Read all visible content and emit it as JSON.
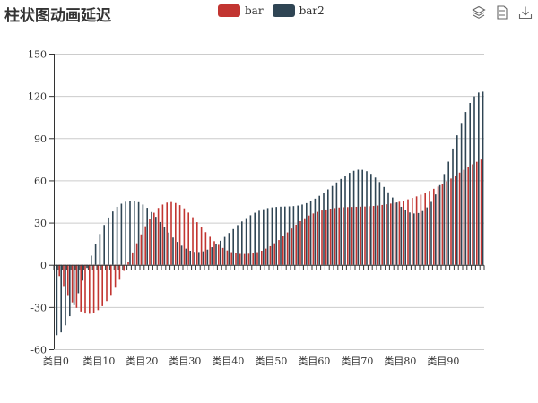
{
  "chart_data": {
    "type": "bar",
    "title": "柱状图动画延迟",
    "legend_position": "top-center",
    "grid": true,
    "ylim": [
      -60,
      150
    ],
    "yticks": [
      -60,
      -30,
      0,
      30,
      60,
      90,
      120,
      150
    ],
    "x_tick_labels": [
      "类目0",
      "类目10",
      "类目20",
      "类目30",
      "类目40",
      "类目50",
      "类目60",
      "类目70",
      "类目80",
      "类目90"
    ],
    "category_prefix": "类目",
    "category_count": 100,
    "series": [
      {
        "name": "bar",
        "color": "#c23531",
        "values": [
          0,
          -8.0,
          -15.1,
          -21.5,
          -26.7,
          -30.6,
          -33.2,
          -34.6,
          -34.8,
          -34.0,
          -32.2,
          -29.4,
          -25.8,
          -21.4,
          -16.3,
          -10.6,
          -4.3,
          2.2,
          8.8,
          15.3,
          21.6,
          27.4,
          32.6,
          37.0,
          40.4,
          42.8,
          44.2,
          44.6,
          43.9,
          42.4,
          40.1,
          37.1,
          33.8,
          30.3,
          26.7,
          23.2,
          19.9,
          16.8,
          14.2,
          12.0,
          10.2,
          9.0,
          8.2,
          7.8,
          7.7,
          7.9,
          8.2,
          9.0,
          10.0,
          11.5,
          13.2,
          15.3,
          17.6,
          20.2,
          23.0,
          25.8,
          28.5,
          31.0,
          33.1,
          35.0,
          36.5,
          37.6,
          38.6,
          39.3,
          39.9,
          40.3,
          40.7,
          40.9,
          41.0,
          41.1,
          41.2,
          41.3,
          41.4,
          41.6,
          41.8,
          42.1,
          42.5,
          43.0,
          43.5,
          44.1,
          44.8,
          45.6,
          46.5,
          47.5,
          48.6,
          49.8,
          51.1,
          52.5,
          54.0,
          55.6,
          57.4,
          59.3,
          61.3,
          63.4,
          65.5,
          67.5,
          69.5,
          71.4,
          73.2,
          74.8
        ]
      },
      {
        "name": "bar2",
        "color": "#2f4554",
        "values": [
          -50,
          -48.0,
          -43.0,
          -36.5,
          -28.7,
          -20.2,
          -11.2,
          -2.2,
          6.5,
          14.6,
          21.9,
          28.3,
          33.6,
          37.9,
          41.2,
          43.4,
          44.8,
          45.5,
          45.4,
          44.5,
          42.8,
          40.5,
          37.5,
          34.1,
          30.4,
          26.6,
          22.9,
          19.4,
          16.3,
          13.6,
          11.5,
          10.0,
          9.2,
          9.1,
          9.6,
          10.8,
          12.5,
          14.6,
          17.1,
          19.8,
          22.6,
          25.4,
          28.2,
          30.8,
          33.2,
          35.2,
          37.0,
          38.4,
          39.5,
          40.3,
          40.8,
          41.1,
          41.3,
          41.4,
          41.5,
          41.7,
          42.1,
          42.8,
          43.8,
          45.2,
          47.0,
          49.0,
          51.2,
          53.6,
          56.0,
          58.5,
          61.0,
          63.3,
          65.3,
          66.8,
          67.6,
          67.5,
          66.5,
          64.6,
          62.0,
          58.8,
          55.3,
          51.5,
          47.8,
          44.3,
          41.2,
          38.8,
          37.2,
          36.5,
          36.8,
          38.2,
          40.8,
          44.7,
          50.0,
          56.6,
          64.5,
          73.3,
          82.6,
          92.0,
          100.8,
          108.6,
          115.0,
          119.7,
          122.4,
          123.0
        ]
      }
    ]
  },
  "toolbox": {
    "icons": [
      "stack-layers-icon",
      "data-view-icon",
      "save-image-icon"
    ]
  }
}
